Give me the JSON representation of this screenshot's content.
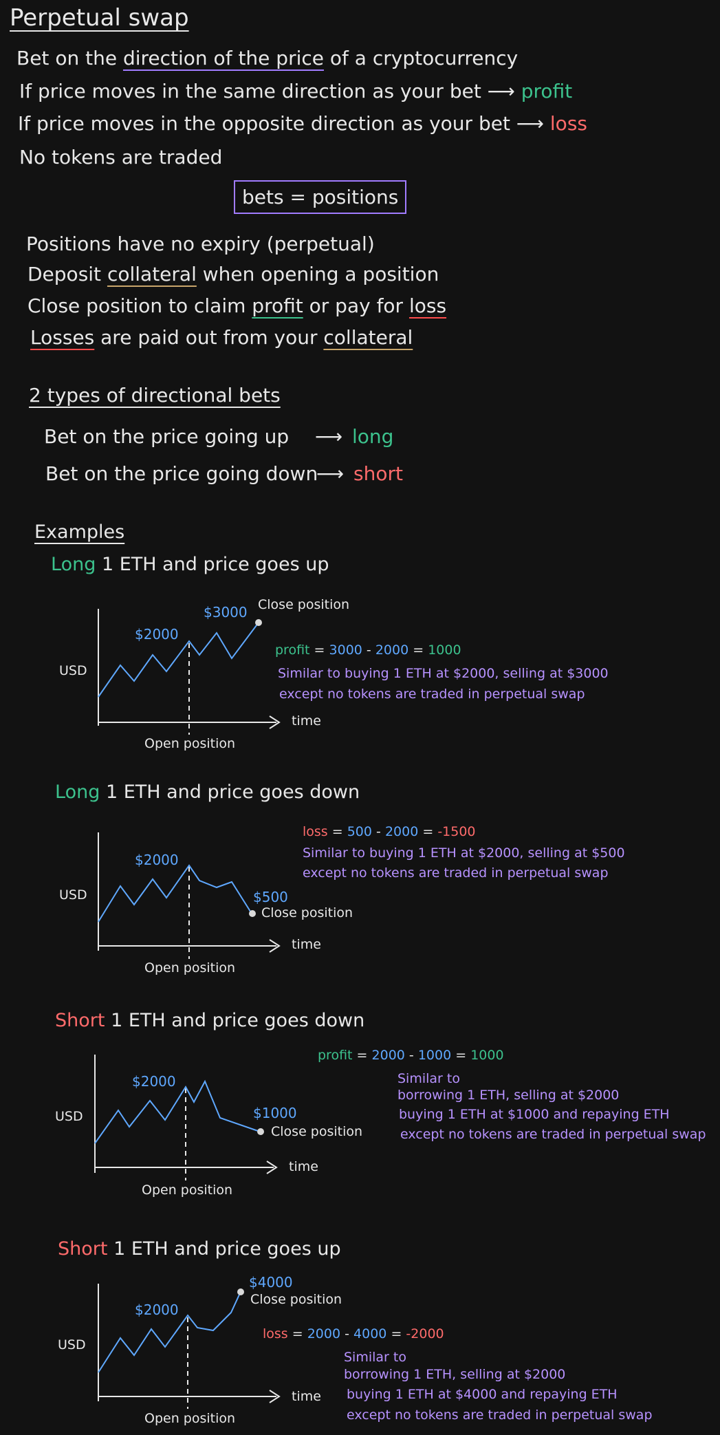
{
  "title": "Perpetual swap",
  "intro": {
    "line1_a": "Bet on the",
    "line1_b": "direction of the price",
    "line1_c": "of a cryptocurrency",
    "line2_a": "If price moves in the same direction as your bet",
    "line2_b": "profit",
    "line3_a": "If price moves in the opposite direction as your bet",
    "line3_b": "loss",
    "line4": "No tokens are traded"
  },
  "box_label": "bets = positions",
  "positions": {
    "p1": "Positions have no expiry (perpetual)",
    "p2_a": "Deposit",
    "p2_b": "collateral",
    "p2_c": "when opening a position",
    "p3_a": "Close position to claim",
    "p3_b": "profit",
    "p3_c": "or pay for",
    "p3_d": "loss",
    "p4_a": "Losses",
    "p4_b": "are paid out from your",
    "p4_c": "collateral"
  },
  "types": {
    "heading": "2 types of directional bets",
    "up": "Bet on the price going up",
    "long": "long",
    "down": "Bet on the price going down",
    "short": "short"
  },
  "examples_heading": "Examples",
  "examples": [
    {
      "title_side": "Long",
      "title_rest": "1 ETH and price goes up",
      "price_open": "$2000",
      "price_close": "$3000",
      "close_label": "Close position",
      "open_label": "Open position",
      "y_label": "USD",
      "x_label": "time",
      "result_word": "profit",
      "eq": "=",
      "a": "3000",
      "minus": "-",
      "b": "2000",
      "eq2": "=",
      "r": "1000",
      "notes": [
        "Similar to buying 1 ETH at $2000, selling at $3000",
        "except no tokens are traded in perpetual swap"
      ]
    },
    {
      "title_side": "Long",
      "title_rest": "1 ETH and price goes down",
      "price_open": "$2000",
      "price_close": "$500",
      "close_label": "Close position",
      "open_label": "Open position",
      "y_label": "USD",
      "x_label": "time",
      "result_word": "loss",
      "eq": "=",
      "a": "500",
      "minus": "-",
      "b": "2000",
      "eq2": "=",
      "r": "-1500",
      "notes": [
        "Similar to buying 1 ETH at $2000, selling at $500",
        "except no tokens are traded in perpetual swap"
      ]
    },
    {
      "title_side": "Short",
      "title_rest": "1 ETH and price goes down",
      "price_open": "$2000",
      "price_close": "$1000",
      "close_label": "Close position",
      "open_label": "Open position",
      "y_label": "USD",
      "x_label": "time",
      "result_word": "profit",
      "eq": "=",
      "a": "2000",
      "minus": "-",
      "b": "1000",
      "eq2": "=",
      "r": "1000",
      "notes": [
        "Similar to",
        "borrowing 1 ETH, selling at $2000",
        "buying 1 ETH at $1000 and repaying ETH",
        "except no tokens are traded in perpetual swap"
      ]
    },
    {
      "title_side": "Short",
      "title_rest": "1 ETH and price goes up",
      "price_open": "$2000",
      "price_close": "$4000",
      "close_label": "Close position",
      "open_label": "Open position",
      "y_label": "USD",
      "x_label": "time",
      "result_word": "loss",
      "eq": "=",
      "a": "2000",
      "minus": "-",
      "b": "4000",
      "eq2": "=",
      "r": "-2000",
      "notes": [
        "Similar to",
        "borrowing 1 ETH, selling at $2000",
        "buying 1 ETH at $4000 and repaying ETH",
        "except no tokens are traded in perpetual swap"
      ]
    }
  ],
  "colors": {
    "background": "#121212",
    "text": "#e8e8e8",
    "green": "#3cc28d",
    "red": "#ff6b6b",
    "blue": "#5fa8ff",
    "purple": "#b792ff"
  }
}
